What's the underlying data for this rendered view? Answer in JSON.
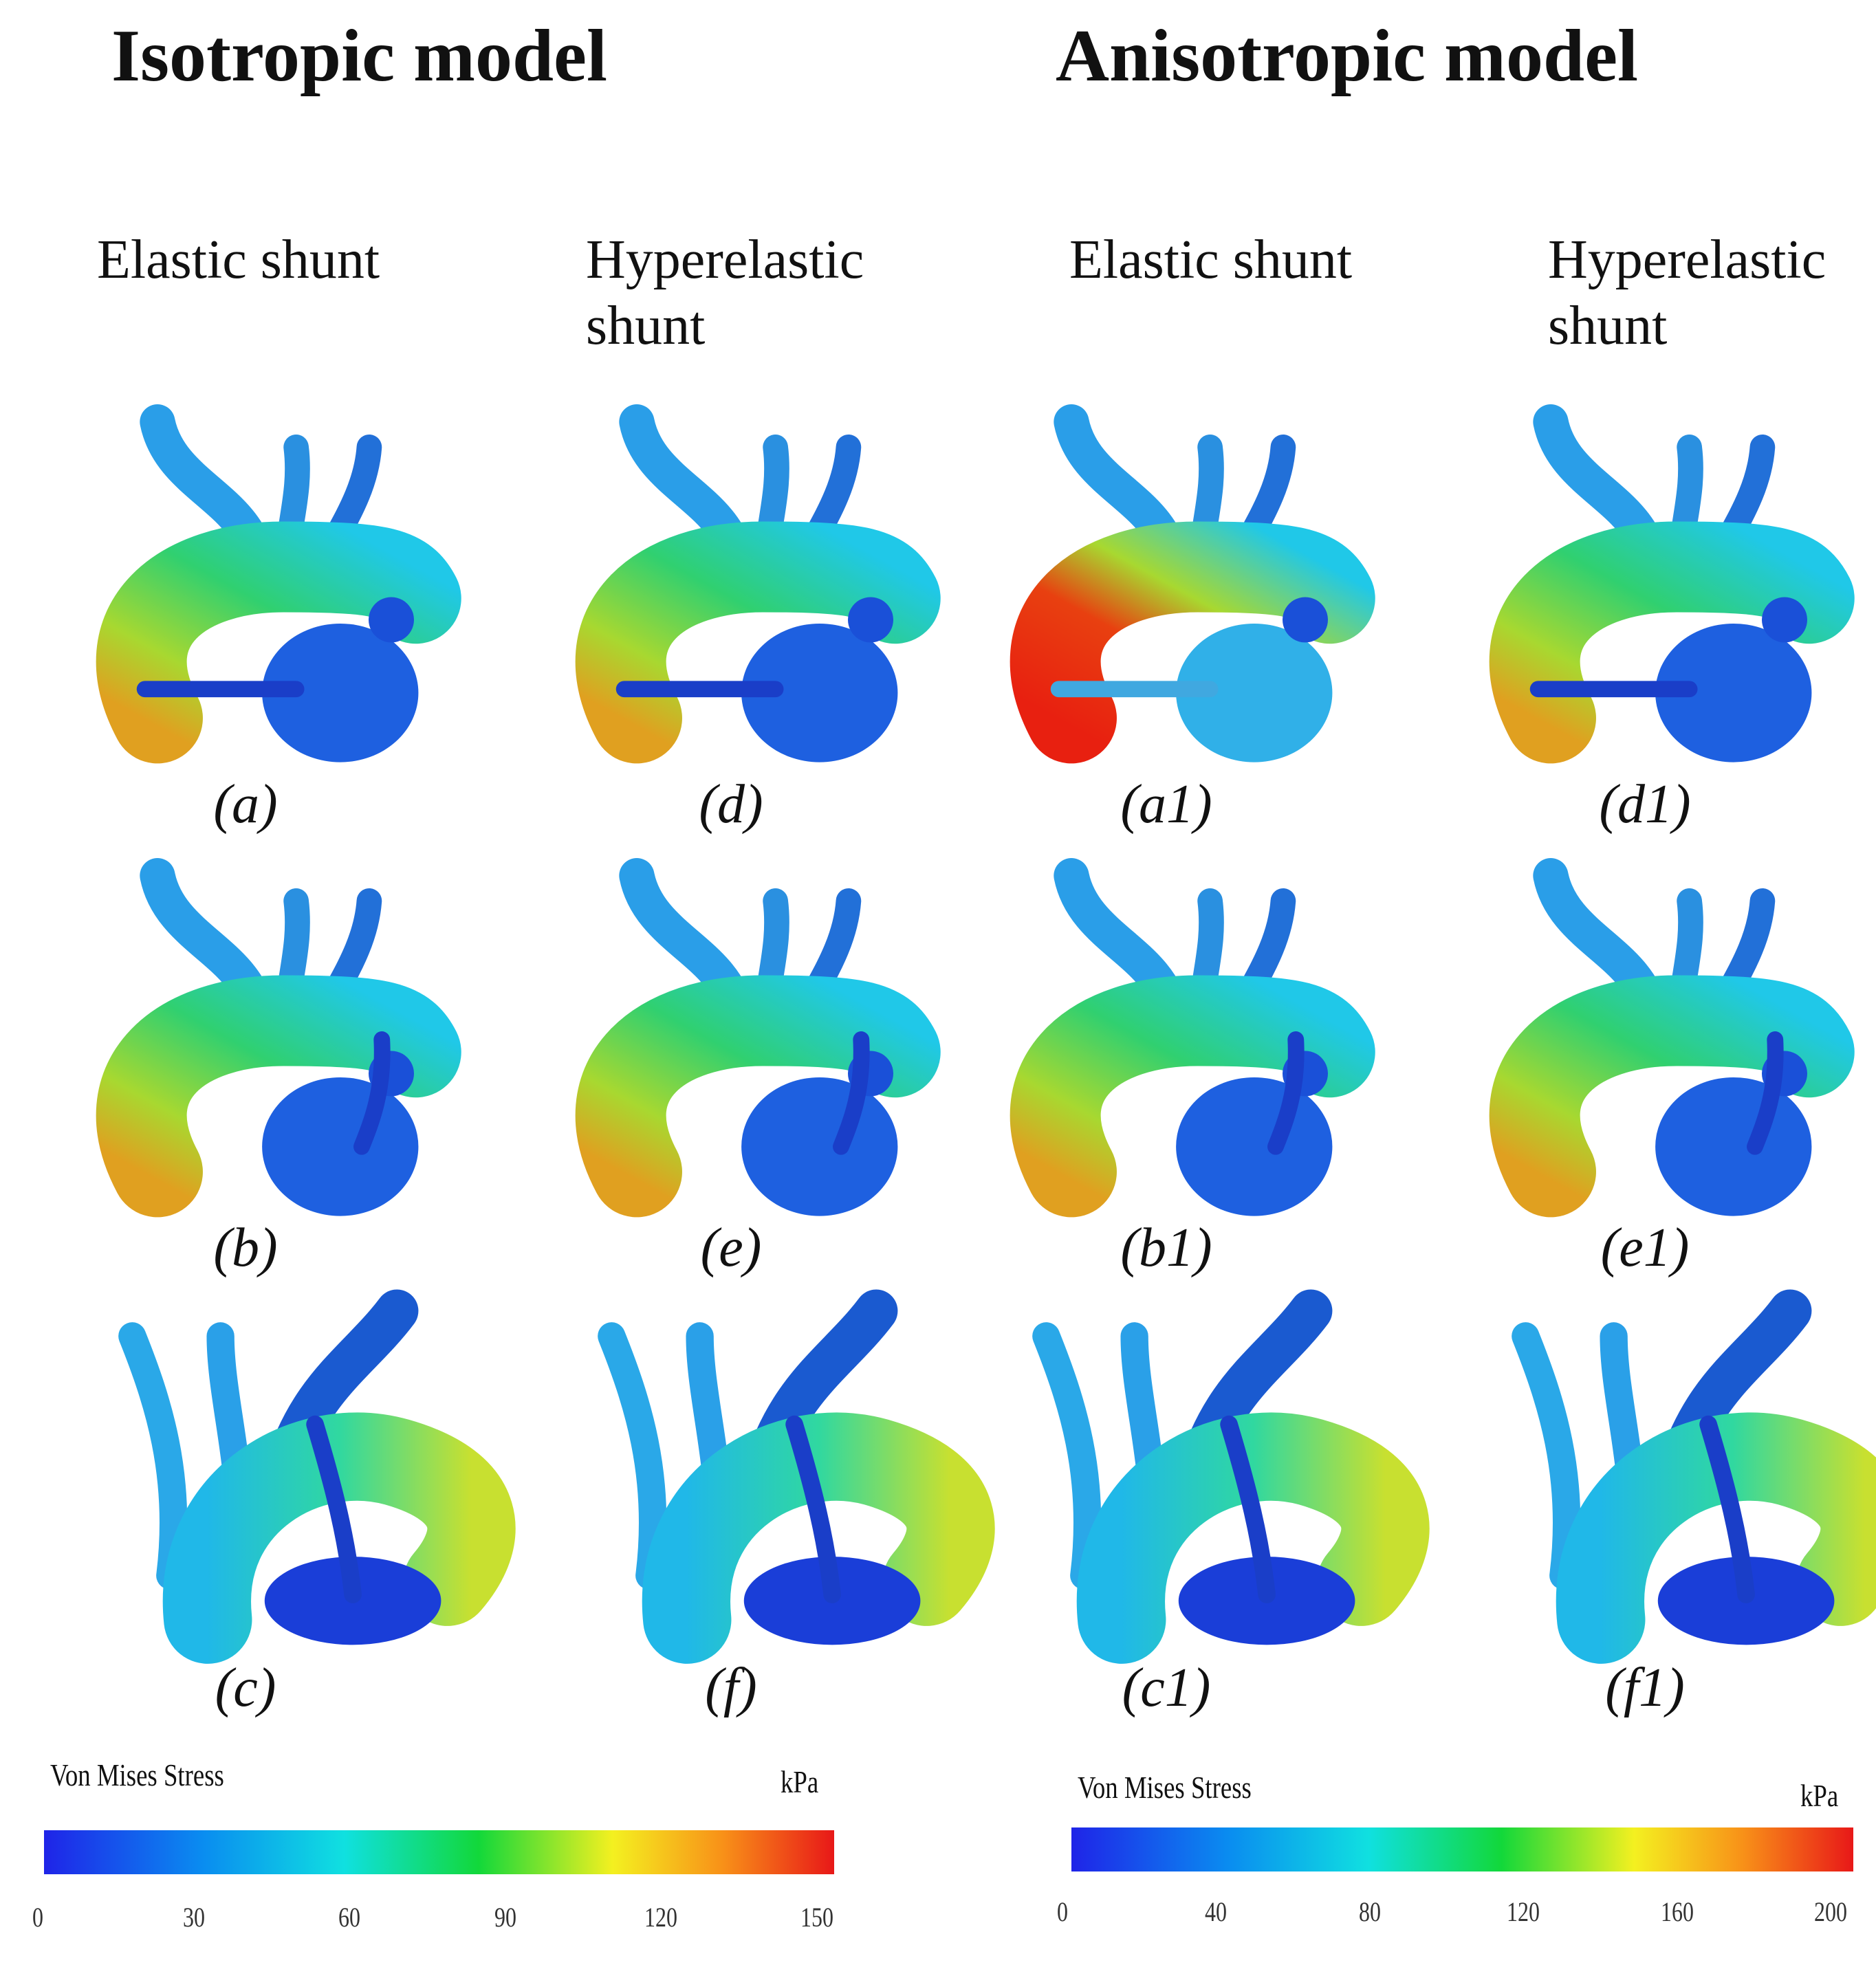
{
  "titles": [
    "Isotropic model",
    "Anisotropic model"
  ],
  "columns": [
    "Elastic shunt",
    "Hyperelastic shunt",
    "Elastic shunt",
    "Hyperelastic shunt"
  ],
  "panels": [
    [
      "(a)",
      "(d)",
      "(a1)",
      "(d1)"
    ],
    [
      "(b)",
      "(e)",
      "(b1)",
      "(e1)"
    ],
    [
      "(c)",
      "(f)",
      "(c1)",
      "(f1)"
    ]
  ],
  "colorbars": [
    {
      "title": "Von Mises Stress",
      "unit": "kPa",
      "ticks": [
        0,
        30,
        60,
        90,
        120,
        150
      ]
    },
    {
      "title": "Von Mises Stress",
      "unit": "kPa",
      "ticks": [
        0,
        40,
        80,
        120,
        160,
        200
      ]
    }
  ]
}
